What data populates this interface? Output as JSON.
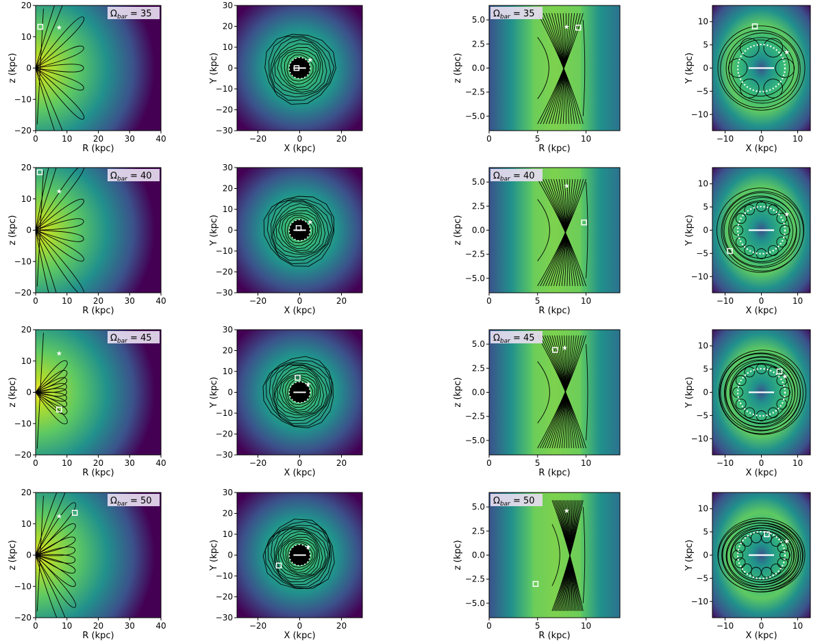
{
  "figure": {
    "column_types": [
      "meridional",
      "face-on",
      "meridional-zoom",
      "face-on-zoom"
    ],
    "rows": [
      {
        "omega_label": "= 35",
        "omega": 35
      },
      {
        "omega_label": "= 40",
        "omega": 40
      },
      {
        "omega_label": "= 45",
        "omega": 45
      },
      {
        "omega_label": "= 50",
        "omega": 50
      }
    ],
    "omega_symbol": "Ω",
    "omega_subscript": "bar",
    "colormap": [
      "#440154",
      "#3b528b",
      "#21918c",
      "#5ec962",
      "#fde725"
    ]
  },
  "chart_data": [
    {
      "type": "heatmap",
      "panel": "meridional",
      "xlabel": "R (kpc)",
      "ylabel": "z (kpc)",
      "xlim": [
        0,
        40
      ],
      "ylim": [
        -20,
        20
      ],
      "xticks": [
        0,
        10,
        20,
        30,
        40
      ],
      "yticks": [
        -20,
        -10,
        0,
        10,
        20
      ],
      "orbit_markers": [
        {
          "omega": 35,
          "star": [
            7.5,
            13
          ],
          "square": [
            1.5,
            13.2
          ]
        },
        {
          "omega": 40,
          "star": [
            7.5,
            12.5
          ],
          "square": [
            1.3,
            18.5
          ]
        },
        {
          "omega": 45,
          "star": [
            7.5,
            12.5
          ],
          "square": [
            7.5,
            -5.5
          ]
        },
        {
          "omega": 50,
          "star": [
            7.5,
            12.5
          ],
          "square": [
            12.5,
            13.5
          ]
        }
      ]
    },
    {
      "type": "heatmap",
      "panel": "face-on",
      "xlabel": "X (kpc)",
      "ylabel": "Y (kpc)",
      "xlim": [
        -30,
        30
      ],
      "ylim": [
        -30,
        30
      ],
      "xticks": [
        -20,
        0,
        20
      ],
      "yticks": [
        -30,
        -20,
        -10,
        0,
        10,
        20,
        30
      ],
      "orbit_markers": [
        {
          "omega": 35,
          "star": [
            5,
            4
          ],
          "square": [
            -1.5,
            0
          ]
        },
        {
          "omega": 40,
          "star": [
            5,
            4
          ],
          "square": [
            -0.5,
            1
          ]
        },
        {
          "omega": 45,
          "star": [
            4,
            4
          ],
          "square": [
            -1,
            7
          ]
        },
        {
          "omega": 50,
          "star": [
            4,
            4
          ],
          "square": [
            -10,
            -5
          ]
        }
      ]
    },
    {
      "type": "heatmap",
      "panel": "meridional-zoom",
      "xlabel": "R (kpc)",
      "ylabel": "z (kpc)",
      "xlim": [
        0,
        13.5
      ],
      "ylim": [
        -6.5,
        6.5
      ],
      "xticks": [
        0,
        5,
        10
      ],
      "yticks": [
        -5.0,
        -2.5,
        0.0,
        2.5,
        5.0
      ],
      "ytick_labels": [
        "−5.0",
        "−2.5",
        "0.0",
        "2.5",
        "5.0"
      ],
      "orbit_markers": [
        {
          "omega": 35,
          "star": [
            8,
            4.3
          ],
          "square": [
            9.2,
            4.2
          ]
        },
        {
          "omega": 40,
          "star": [
            8,
            4.6
          ],
          "square": [
            9.8,
            0.8
          ]
        },
        {
          "omega": 45,
          "star": [
            7.8,
            4.6
          ],
          "square": [
            6.8,
            4.4
          ]
        },
        {
          "omega": 50,
          "star": [
            8,
            4.6
          ],
          "square": [
            4.8,
            -3
          ]
        }
      ]
    },
    {
      "type": "heatmap",
      "panel": "face-on-zoom",
      "xlabel": "X (kpc)",
      "ylabel": "Y (kpc)",
      "xlim": [
        -13.5,
        13.5
      ],
      "ylim": [
        -13.5,
        13.5
      ],
      "xticks": [
        -10,
        0,
        10
      ],
      "yticks": [
        -10,
        -5,
        0,
        5,
        10
      ],
      "orbit_markers": [
        {
          "omega": 35,
          "star": [
            7,
            3.5
          ],
          "square": [
            -1.8,
            9
          ]
        },
        {
          "omega": 40,
          "star": [
            7,
            3.5
          ],
          "square": [
            -8.7,
            -4.5
          ]
        },
        {
          "omega": 45,
          "star": [
            6.5,
            3.5
          ],
          "square": [
            5,
            4.5
          ]
        },
        {
          "omega": 50,
          "star": [
            7,
            3
          ],
          "square": [
            1.5,
            4.5
          ]
        }
      ]
    }
  ]
}
